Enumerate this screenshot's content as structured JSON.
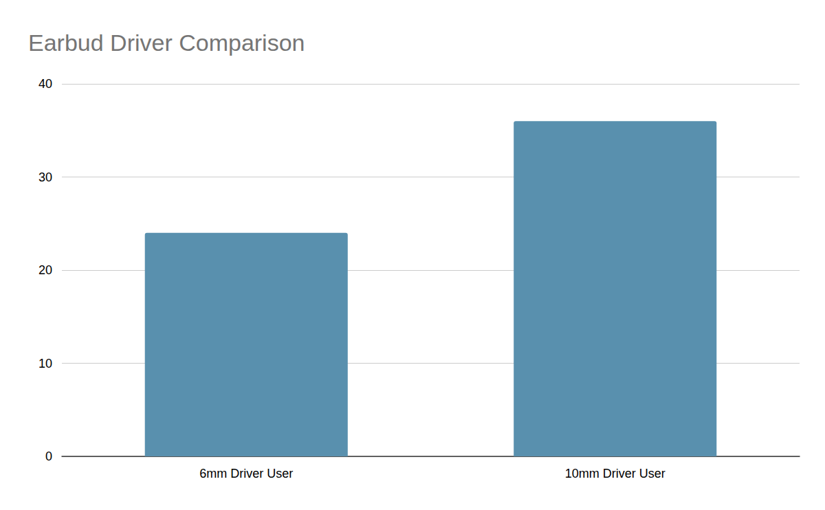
{
  "chart_data": {
    "type": "bar",
    "title": "Earbud Driver Comparison",
    "categories": [
      "6mm Driver User",
      "10mm Driver User"
    ],
    "values": [
      24,
      36
    ],
    "color": "#5990ae",
    "ylim": [
      0,
      40
    ],
    "yticks": [
      0,
      10,
      20,
      30,
      40
    ],
    "grid": true
  }
}
